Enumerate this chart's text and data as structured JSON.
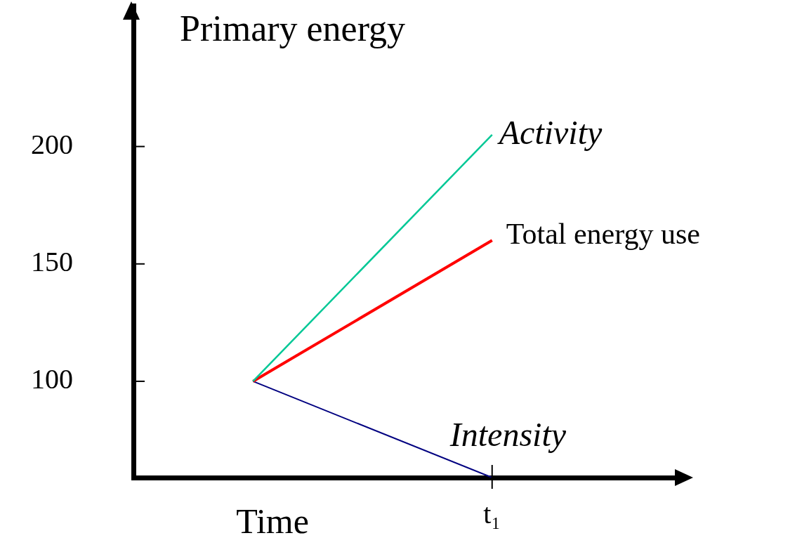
{
  "chart_data": {
    "type": "line",
    "ylabel": "Primary energy",
    "xlabel": "Time",
    "categories": [
      null,
      "t₁"
    ],
    "ylim": [
      59,
      260
    ],
    "yticks": [
      100,
      150,
      200
    ],
    "marker": "none",
    "line_style": "solid",
    "series": [
      {
        "name": "Activity",
        "color": "#00c896",
        "values": [
          100,
          205
        ]
      },
      {
        "name": "Total energy use",
        "color": "#ff0000",
        "values": [
          100,
          160
        ]
      },
      {
        "name": "Intensity",
        "color": "#000080",
        "values": [
          100,
          59
        ]
      }
    ]
  }
}
